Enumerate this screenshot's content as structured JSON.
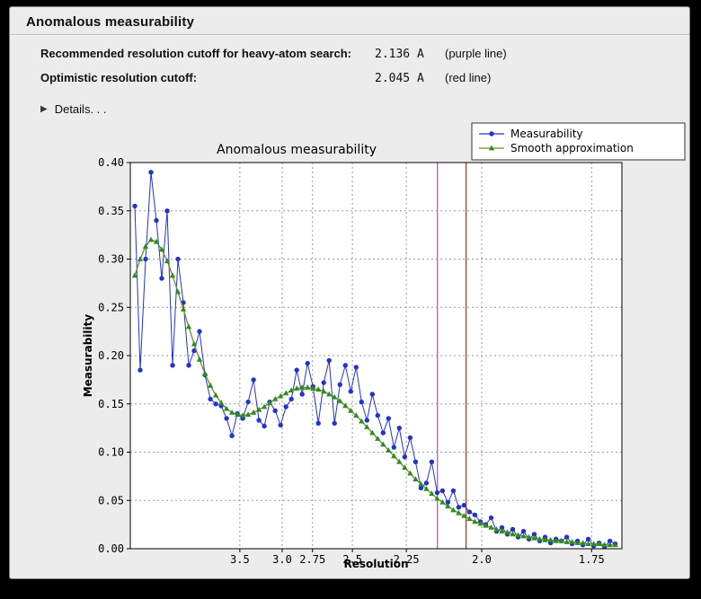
{
  "header": {
    "title": "Anomalous measurability"
  },
  "info": {
    "rows": [
      {
        "label": "Recommended resolution cutoff for heavy-atom search:",
        "value": "2.136 A",
        "note": "(purple line)"
      },
      {
        "label": "Optimistic resolution cutoff:",
        "value": "2.045 A",
        "note": "(red line)"
      }
    ],
    "details_icon": "▶",
    "details_label": "Details. . ."
  },
  "chart_data": {
    "type": "line",
    "title": "Anomalous measurability",
    "xlabel": "Resolution",
    "ylabel": "Measurability",
    "ylim": [
      0,
      0.4
    ],
    "yticks": [
      0.0,
      0.05,
      0.1,
      0.15,
      0.2,
      0.25,
      0.3,
      0.35,
      0.4
    ],
    "xticks": [
      3.5,
      3.0,
      2.75,
      2.5,
      2.25,
      2.0,
      1.75
    ],
    "xtick_labels": [
      "3.5",
      "3.0",
      "2.75",
      "2.5",
      "2.25",
      "2.0",
      "1.75"
    ],
    "x_axis": {
      "scale": "1_over_d_squared",
      "s_min": 0.0054,
      "s_max": 0.3476,
      "units": "Angstrom",
      "direction": "resolution decreasing left to right"
    },
    "series_s_start": 0.0085,
    "series_s_end": 0.343,
    "grid": {
      "style": "dotted",
      "color": "#999999"
    },
    "legend": {
      "position": "top-right",
      "border_color": "#333333",
      "background": "#ffffff",
      "entries": [
        "Measurability",
        "Smooth approximation"
      ]
    },
    "vlines": [
      {
        "resolution": 2.136,
        "color": "#b75bb7",
        "name": "recommended-cutoff-line",
        "description": "purple line"
      },
      {
        "resolution": 2.045,
        "color": "#a33b2b",
        "name": "optimistic-cutoff-line",
        "description": "red line"
      }
    ],
    "series": [
      {
        "name": "Measurability",
        "color": "#2433c9",
        "marker": "circle",
        "marker_color": "#2433c9",
        "values": [
          0.355,
          0.185,
          0.3,
          0.39,
          0.34,
          0.28,
          0.35,
          0.19,
          0.3,
          0.255,
          0.19,
          0.205,
          0.225,
          0.18,
          0.155,
          0.15,
          0.148,
          0.135,
          0.117,
          0.14,
          0.135,
          0.152,
          0.175,
          0.133,
          0.127,
          0.152,
          0.143,
          0.128,
          0.147,
          0.155,
          0.185,
          0.16,
          0.192,
          0.168,
          0.13,
          0.172,
          0.195,
          0.13,
          0.17,
          0.19,
          0.163,
          0.188,
          0.152,
          0.133,
          0.16,
          0.138,
          0.12,
          0.135,
          0.105,
          0.125,
          0.095,
          0.115,
          0.09,
          0.063,
          0.068,
          0.09,
          0.058,
          0.06,
          0.048,
          0.06,
          0.043,
          0.045,
          0.038,
          0.035,
          0.028,
          0.025,
          0.032,
          0.018,
          0.022,
          0.015,
          0.02,
          0.012,
          0.018,
          0.01,
          0.015,
          0.008,
          0.012,
          0.006,
          0.01,
          0.008,
          0.012,
          0.005,
          0.008,
          0.004,
          0.01,
          0.003,
          0.006,
          0.002,
          0.008,
          0.005
        ]
      },
      {
        "name": "Smooth approximation",
        "color": "#6b8e23",
        "marker": "triangle",
        "marker_color": "#2e8b22",
        "values": [
          0.283,
          0.3,
          0.313,
          0.32,
          0.318,
          0.31,
          0.298,
          0.283,
          0.266,
          0.248,
          0.23,
          0.212,
          0.196,
          0.181,
          0.169,
          0.159,
          0.151,
          0.145,
          0.141,
          0.139,
          0.138,
          0.139,
          0.141,
          0.144,
          0.147,
          0.151,
          0.155,
          0.158,
          0.161,
          0.164,
          0.166,
          0.167,
          0.167,
          0.166,
          0.165,
          0.163,
          0.16,
          0.157,
          0.153,
          0.148,
          0.143,
          0.138,
          0.132,
          0.126,
          0.12,
          0.114,
          0.108,
          0.102,
          0.096,
          0.09,
          0.084,
          0.078,
          0.072,
          0.067,
          0.062,
          0.057,
          0.052,
          0.048,
          0.044,
          0.04,
          0.037,
          0.034,
          0.031,
          0.028,
          0.026,
          0.024,
          0.022,
          0.02,
          0.018,
          0.017,
          0.015,
          0.014,
          0.013,
          0.012,
          0.011,
          0.01,
          0.009,
          0.009,
          0.008,
          0.008,
          0.007,
          0.007,
          0.006,
          0.006,
          0.005,
          0.005,
          0.005,
          0.004,
          0.004,
          0.004
        ]
      }
    ]
  }
}
